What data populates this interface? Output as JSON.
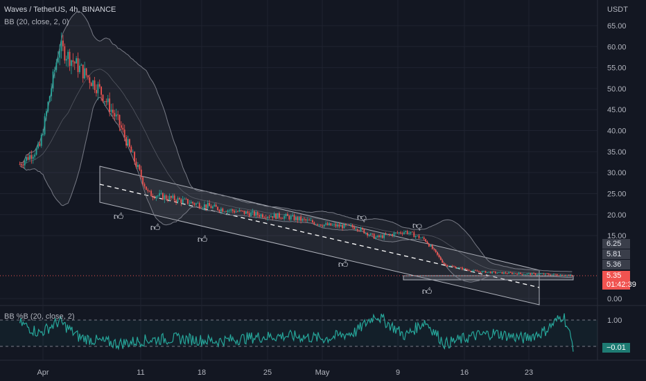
{
  "header": {
    "symbol_line": "Waves / TetherUS, 4h, BINANCE",
    "bb_legend": "BB (20, close, 2, 0)",
    "bbp_legend": "BB %B (20, close, 2)"
  },
  "price_axis": {
    "unit": "USDT",
    "tick_labels": [
      "65.00",
      "60.00",
      "55.00",
      "50.00",
      "45.00",
      "40.00",
      "35.00",
      "30.00",
      "25.00",
      "20.00",
      "15.00",
      "0.00"
    ],
    "tag_values": {
      "upper": "6.25",
      "basis": "5.81",
      "lower": "5.36",
      "last_price": "5.35",
      "countdown": "01:42:39"
    }
  },
  "indicator_axis": {
    "tick_labels": [
      "1.00"
    ],
    "current_value": "−0.01"
  },
  "time_axis": {
    "labels": [
      "Apr",
      "11",
      "18",
      "25",
      "May",
      "9",
      "16",
      "23"
    ]
  },
  "colors": {
    "background": "#131722",
    "up_candle": "#26a69a",
    "down_candle": "#ef5350",
    "bb_line": "#787b86",
    "channel_fill": "#ffffff",
    "indicator_line": "#26a69a",
    "last_price_tag": "#f05350"
  },
  "annotations": {
    "icons": [
      "thumbs-up-icon",
      "thumbs-up-icon",
      "thumbs-up-icon",
      "thumbs-up-icon",
      "thumbs-down-icon",
      "thumbs-down-icon",
      "thumbs-up-icon"
    ]
  },
  "chart_data": [
    {
      "type": "line",
      "title": "Waves / TetherUS, 4h, BINANCE",
      "xlabel": "",
      "ylabel": "USDT",
      "x": [
        "2022-03-29",
        "2022-03-31",
        "2022-04-02",
        "2022-04-04",
        "2022-04-06",
        "2022-04-08",
        "2022-04-11",
        "2022-04-14",
        "2022-04-18",
        "2022-04-22",
        "2022-04-25",
        "2022-04-29",
        "2022-05-02",
        "2022-05-04",
        "2022-05-07",
        "2022-05-09",
        "2022-05-11",
        "2022-05-14",
        "2022-05-16",
        "2022-05-19",
        "2022-05-21",
        "2022-05-23",
        "2022-05-24"
      ],
      "series": [
        {
          "name": "",
          "values": [
            32.0,
            36.0,
            60.0,
            55.0,
            50.0,
            42.0,
            25.0,
            23.5,
            21.5,
            20.0,
            19.5,
            17.5,
            17.0,
            14.5,
            16.0,
            14.0,
            8.0,
            6.5,
            6.2,
            5.9,
            5.8,
            5.6,
            5.35
          ]
        }
      ],
      "ylim": [
        0,
        68
      ],
      "grid": true,
      "annotations": [
        "6.25",
        "5.81",
        "5.36",
        "5.35"
      ]
    },
    {
      "type": "line",
      "title": "BB %B (20, close, 2)",
      "series": [
        {
          "name": "",
          "values": [
            0.9,
            0.5,
            0.95,
            0.35,
            0.2,
            0.1,
            0.25,
            0.3,
            0.2,
            0.35,
            0.4,
            0.3,
            0.55,
            1.2,
            0.4,
            0.95,
            0.1,
            0.4,
            0.5,
            0.3,
            0.55,
            1.2,
            -0.01
          ]
        }
      ],
      "ylim": [
        -0.1,
        1.3
      ],
      "grid": false
    }
  ]
}
